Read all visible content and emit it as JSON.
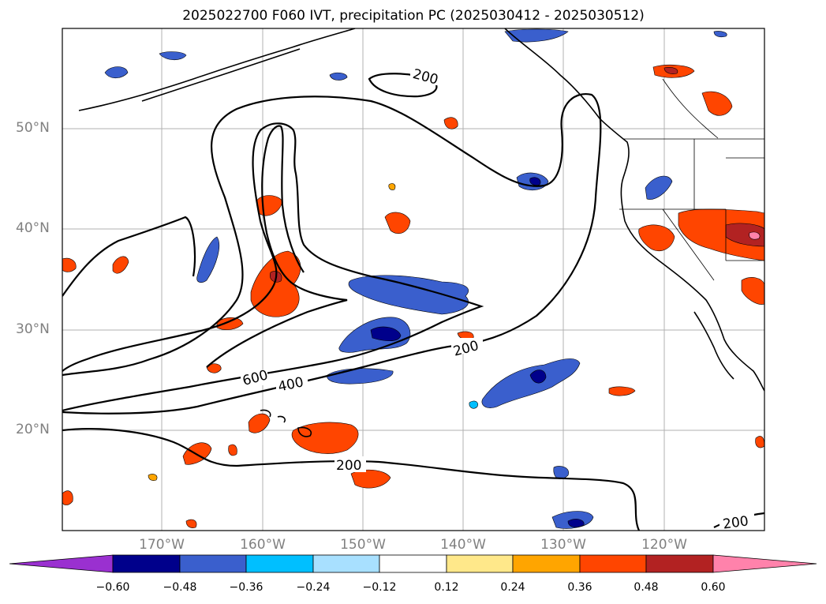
{
  "title": "2025022700 F060 IVT, precipitation PC (2025030412 - 2025030512)",
  "lat_labels": [
    "50°N",
    "40°N",
    "30°N",
    "20°N"
  ],
  "lon_labels": [
    "170°W",
    "160°W",
    "150°W",
    "140°W",
    "130°W",
    "120°W"
  ],
  "contour_labels": [
    "200",
    "200",
    "600",
    "400",
    "200",
    "200"
  ],
  "colorbar": {
    "ticks": [
      "−0.60",
      "−0.48",
      "−0.36",
      "−0.24",
      "−0.12",
      "0.12",
      "0.24",
      "0.36",
      "0.48",
      "0.60"
    ],
    "colors": [
      "#9a30d0",
      "#00008b",
      "#3a5fcd",
      "#00bfff",
      "#a8e0ff",
      "#ffffff",
      "#ffe88a",
      "#ffa500",
      "#ff4500",
      "#b22222",
      "#ff82ab"
    ]
  },
  "colors": {
    "coast": "#000000",
    "grid": "#b0b0b0",
    "contour": "#000000",
    "neg_dark": "#00008b",
    "neg_mid": "#3a5fcd",
    "neg_light": "#00bfff",
    "pos_orange": "#ff4500",
    "pos_red": "#b22222",
    "pos_pink": "#ff82ab"
  }
}
